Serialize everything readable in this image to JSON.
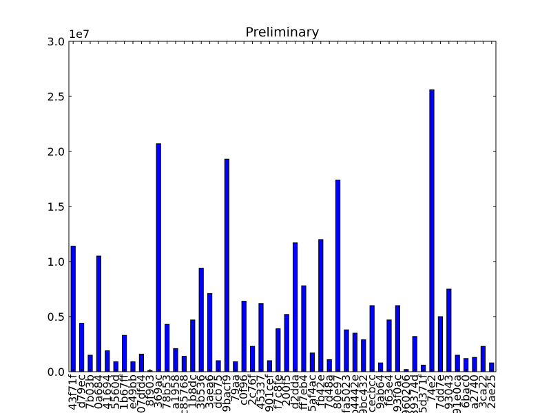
{
  "chart_data": {
    "type": "bar",
    "title": "Preliminary",
    "xlabel": "",
    "ylabel": "",
    "y_offset_label": "1e7",
    "ylim": [
      0,
      3.0
    ],
    "y_ticks": [
      "0.0",
      "0.5",
      "1.0",
      "1.5",
      "2.0",
      "2.5",
      "3.0"
    ],
    "bar_color": "#0000ff",
    "categories": [
      "43f71f",
      "d79ec",
      "7b03b",
      "0a684",
      "41694",
      "5560d",
      "1b67ff",
      "e49bb",
      "07dfd4",
      "8f903",
      "369ac",
      "78b53",
      "a1958",
      "c85768",
      "1b8dc",
      "3b536",
      "3aea6",
      "dcb75",
      "9bacf9",
      "79aa",
      "c0f96",
      "2c76f",
      "45337",
      "901cef",
      "f7c8fe",
      "200f5",
      "d2dda",
      "ff7eb4",
      "5af4ac",
      "fb42e",
      "7d48a",
      "80e97",
      "fa5023",
      "b4442e",
      "9bc432",
      "cecbcc",
      "9ab64",
      "f63e4",
      "93f0ac",
      "960206",
      "39374d",
      "5d371f",
      "74e2",
      "7dd7e",
      "93043",
      "91e0ca",
      "6bac0",
      "a2740",
      "3ca22",
      "2ae25"
    ],
    "values": [
      1.14,
      0.44,
      0.15,
      1.05,
      0.19,
      0.09,
      0.33,
      0.09,
      0.16,
      0.01,
      2.07,
      0.43,
      0.21,
      0.14,
      0.47,
      0.94,
      0.71,
      0.1,
      1.93,
      0.09,
      0.64,
      0.23,
      0.62,
      0.1,
      0.39,
      0.52,
      1.17,
      0.78,
      0.17,
      1.2,
      0.11,
      1.74,
      0.38,
      0.35,
      0.29,
      0.6,
      0.08,
      0.47,
      0.6,
      0.02,
      0.32,
      0.06,
      2.56,
      0.5,
      0.75,
      0.15,
      0.12,
      0.13,
      0.23,
      0.08
    ]
  }
}
